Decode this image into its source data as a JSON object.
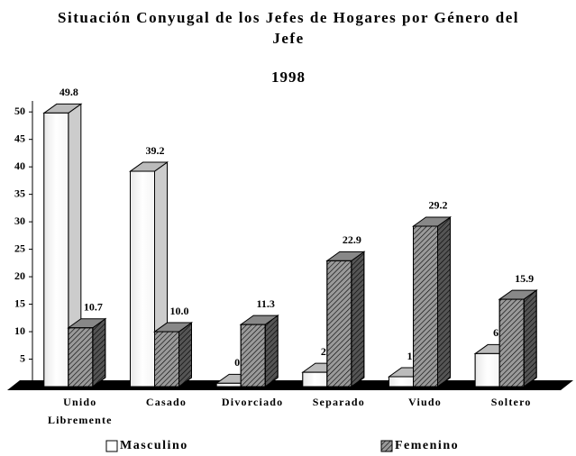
{
  "chart_data": {
    "type": "bar3d",
    "title": "Situación Conyugal de los Jefes de Hogares por Género del Jefe",
    "subtitle": "1998",
    "categories": [
      "Unido Libremente",
      "Casado",
      "Divorciado",
      "Separado",
      "Viudo",
      "Soltero"
    ],
    "series": [
      {
        "name": "Masculino",
        "color": "#ffffff",
        "values": [
          49.8,
          39.2,
          0.6,
          2.6,
          1.8,
          6.0
        ],
        "value_labels": [
          "49.8",
          "39.2",
          "0.6",
          "2.6",
          "1.8",
          "6.0"
        ]
      },
      {
        "name": "Femenino",
        "color": "#9a9a9a",
        "values": [
          10.7,
          10.0,
          11.3,
          22.9,
          29.2,
          15.9
        ],
        "value_labels": [
          "10.7",
          "10.0",
          "11.3",
          "22.9",
          "29.2",
          "15.9"
        ]
      }
    ],
    "ylim": [
      0,
      52
    ],
    "yticks": [
      0,
      5,
      10,
      15,
      20,
      25,
      30,
      35,
      40,
      45,
      50
    ]
  }
}
